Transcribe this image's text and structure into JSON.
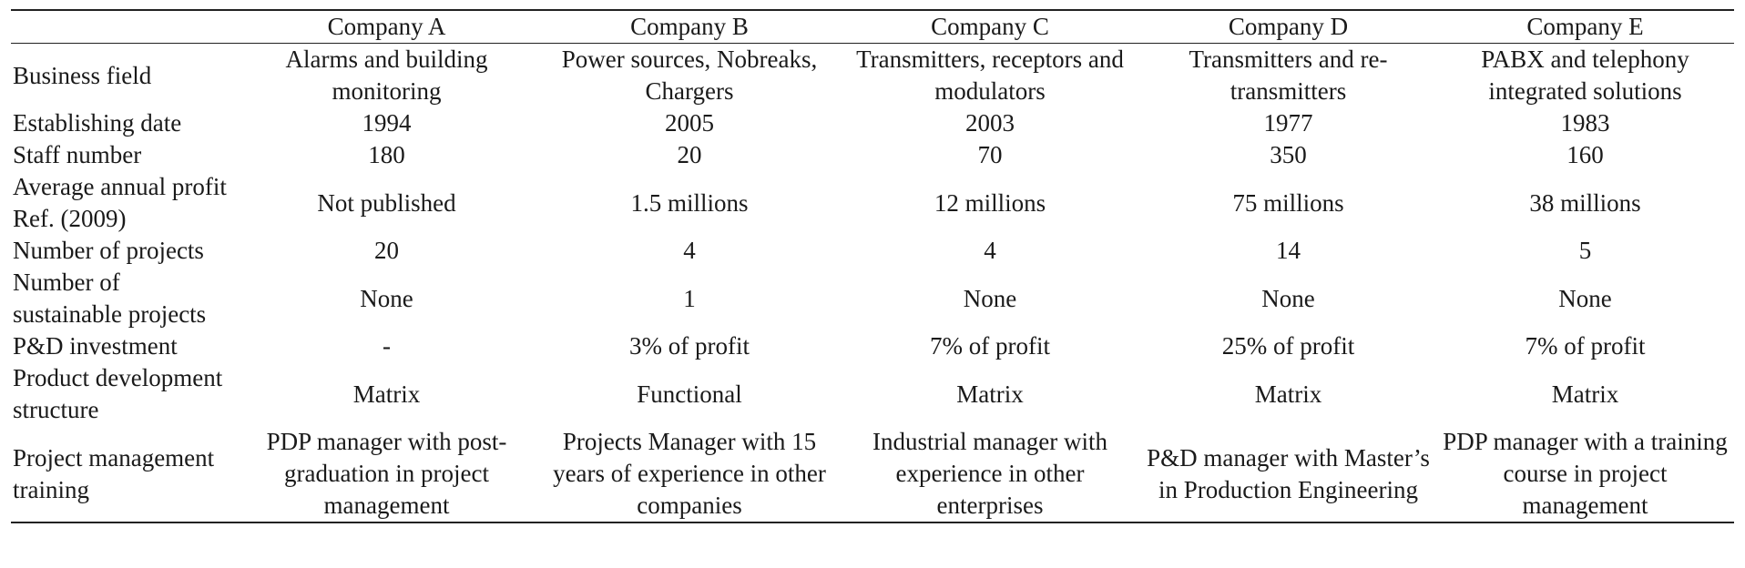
{
  "table": {
    "header": [
      "",
      "Company A",
      "Company B",
      "Company C",
      "Company D",
      "Company E"
    ],
    "rows": [
      {
        "label": "Business field",
        "cells": [
          "Alarms and building monitoring",
          "Power sources, Nobreaks, Chargers",
          "Transmitters, receptors and modulators",
          "Transmitters and re-transmitters",
          "PABX and telephony integrated solutions"
        ]
      },
      {
        "label": "Establishing date",
        "cells": [
          "1994",
          "2005",
          "2003",
          "1977",
          "1983"
        ]
      },
      {
        "label": "Staff number",
        "cells": [
          "180",
          "20",
          "70",
          "350",
          "160"
        ]
      },
      {
        "label": "Average annual profit Ref. (2009)",
        "cells": [
          "Not published",
          "1.5 millions",
          "12 millions",
          "75 millions",
          "38 millions"
        ]
      },
      {
        "label": "Number of projects",
        "cells": [
          "20",
          "4",
          "4",
          "14",
          "5"
        ]
      },
      {
        "label": "Number of sustainable projects",
        "cells": [
          "None",
          "1",
          "None",
          "None",
          "None"
        ]
      },
      {
        "label": "P&D investment",
        "cells": [
          "-",
          "3% of profit",
          "7% of profit",
          "25% of profit",
          "7% of profit"
        ]
      },
      {
        "label": "Product development structure",
        "cells": [
          "Matrix",
          "Functional",
          "Matrix",
          "Matrix",
          "Matrix"
        ]
      },
      {
        "label": "Project management training",
        "cells": [
          "PDP manager with post-graduation in project management",
          "Projects Manager with 15 years of experience in other companies",
          "Industrial manager with experience in other enterprises",
          "P&D manager with Master’s in Production Engineering",
          "PDP manager with a training course in project management"
        ]
      }
    ]
  }
}
